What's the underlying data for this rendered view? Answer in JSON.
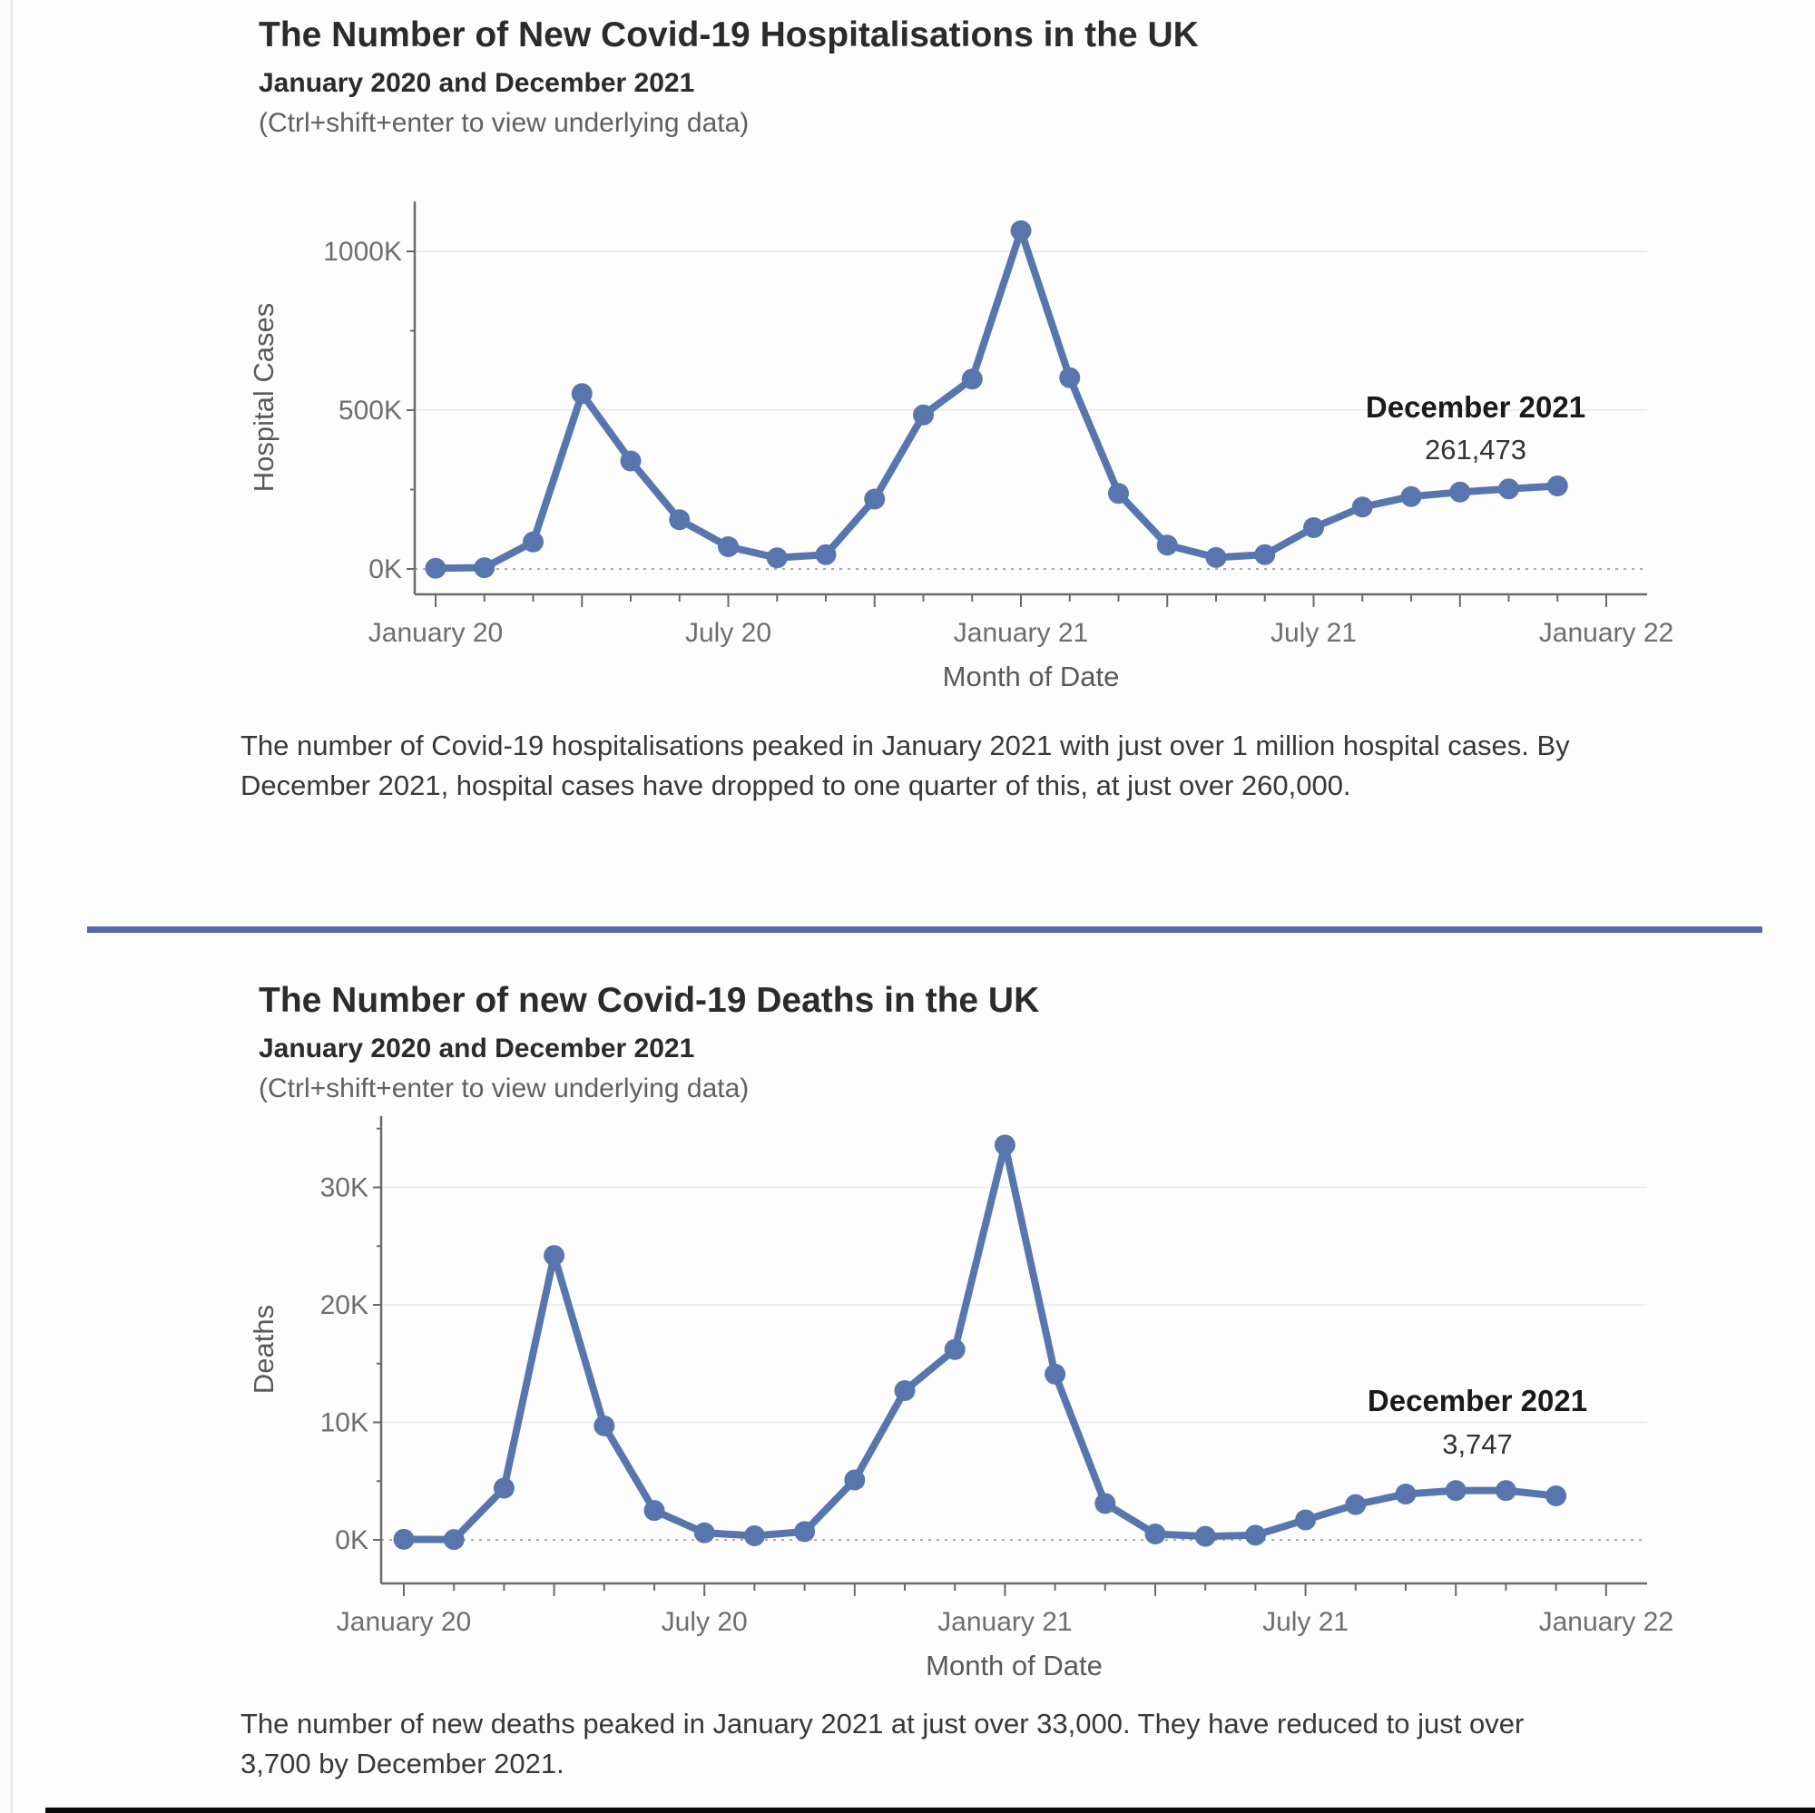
{
  "page": {
    "accent_color": "#5876ad",
    "divider_color": "#5568ae",
    "gridline_color": "#ededed",
    "axis_color": "#6a6a6a",
    "tick_label_color": "#6e6e6e",
    "axis_title_color": "#595959"
  },
  "charts": [
    {
      "title": "The Number of New Covid-19 Hospitalisations in the UK",
      "subtitle": "January 2020 and December 2021",
      "hint": "(Ctrl+shift+enter to view underlying data)",
      "caption": "The number of Covid-19 hospitalisations peaked in January 2021 with just over 1 million hospital cases. By December 2021, hospital cases have dropped to one quarter of this, at just over 260,000.",
      "annotation": {
        "label": "December 2021",
        "value": "261,473"
      }
    },
    {
      "title": "The Number of new Covid-19 Deaths in the UK",
      "subtitle": "January 2020 and December 2021",
      "hint": "(Ctrl+shift+enter to view underlying data)",
      "caption": "The number of new deaths peaked in January 2021 at just over 33,000. They have reduced to just over 3,700 by December 2021.",
      "annotation": {
        "label": "December 2021",
        "value": "3,747"
      }
    }
  ],
  "chart_data": [
    {
      "type": "line",
      "title": "The Number of New Covid-19 Hospitalisations in the UK",
      "xlabel": "Month of Date",
      "ylabel": "Hospital Cases",
      "categories": [
        "Jan 20",
        "Feb 20",
        "Mar 20",
        "Apr 20",
        "May 20",
        "Jun 20",
        "Jul 20",
        "Aug 20",
        "Sep 20",
        "Oct 20",
        "Nov 20",
        "Dec 20",
        "Jan 21",
        "Feb 21",
        "Mar 21",
        "Apr 21",
        "May 21",
        "Jun 21",
        "Jul 21",
        "Aug 21",
        "Sep 21",
        "Oct 21",
        "Nov 21",
        "Dec 21"
      ],
      "values": [
        2000,
        4000,
        85000,
        552000,
        340000,
        155000,
        70000,
        35000,
        45000,
        220000,
        485000,
        598000,
        1065000,
        602000,
        238000,
        75000,
        36000,
        45000,
        130000,
        195000,
        228000,
        242000,
        252000,
        261473
      ],
      "ylim": [
        0,
        1157000
      ],
      "grid": true,
      "legend": "none",
      "y_ticks": [
        {
          "v": 0,
          "label": "0K"
        },
        {
          "v": 500000,
          "label": "500K"
        },
        {
          "v": 1000000,
          "label": "1000K"
        }
      ],
      "y_minor_ticks": [
        250000,
        750000
      ],
      "x_ticks": [
        {
          "i": 0,
          "label": "January 20"
        },
        {
          "i": 6,
          "label": "July 20"
        },
        {
          "i": 12,
          "label": "January 21"
        },
        {
          "i": 18,
          "label": "July 21"
        },
        {
          "i": 24,
          "label": "January 22"
        }
      ],
      "annotation": {
        "label": "December 2021",
        "value": "261,473",
        "point_index": 23
      }
    },
    {
      "type": "line",
      "title": "The Number of new Covid-19 Deaths in the UK",
      "xlabel": "Month of Date",
      "ylabel": "Deaths",
      "categories": [
        "Jan 20",
        "Feb 20",
        "Mar 20",
        "Apr 20",
        "May 20",
        "Jun 20",
        "Jul 20",
        "Aug 20",
        "Sep 20",
        "Oct 20",
        "Nov 20",
        "Dec 20",
        "Jan 21",
        "Feb 21",
        "Mar 21",
        "Apr 21",
        "May 21",
        "Jun 21",
        "Jul 21",
        "Aug 21",
        "Sep 21",
        "Oct 21",
        "Nov 21",
        "Dec 21"
      ],
      "values": [
        50,
        30,
        4400,
        24200,
        9700,
        2500,
        600,
        350,
        700,
        5100,
        12700,
        16200,
        33600,
        14100,
        3100,
        500,
        300,
        400,
        1700,
        3000,
        3900,
        4200,
        4200,
        3747
      ],
      "ylim": [
        0,
        36000
      ],
      "grid": true,
      "legend": "none",
      "y_ticks": [
        {
          "v": 0,
          "label": "0K"
        },
        {
          "v": 10000,
          "label": "10K"
        },
        {
          "v": 20000,
          "label": "20K"
        },
        {
          "v": 30000,
          "label": "30K"
        }
      ],
      "y_minor_ticks": [
        5000,
        15000,
        25000,
        35000
      ],
      "x_ticks": [
        {
          "i": 0,
          "label": "January 20"
        },
        {
          "i": 6,
          "label": "July 20"
        },
        {
          "i": 12,
          "label": "January 21"
        },
        {
          "i": 18,
          "label": "July 21"
        },
        {
          "i": 24,
          "label": "January 22"
        }
      ],
      "annotation": {
        "label": "December 2021",
        "value": "3,747",
        "point_index": 23
      }
    }
  ]
}
